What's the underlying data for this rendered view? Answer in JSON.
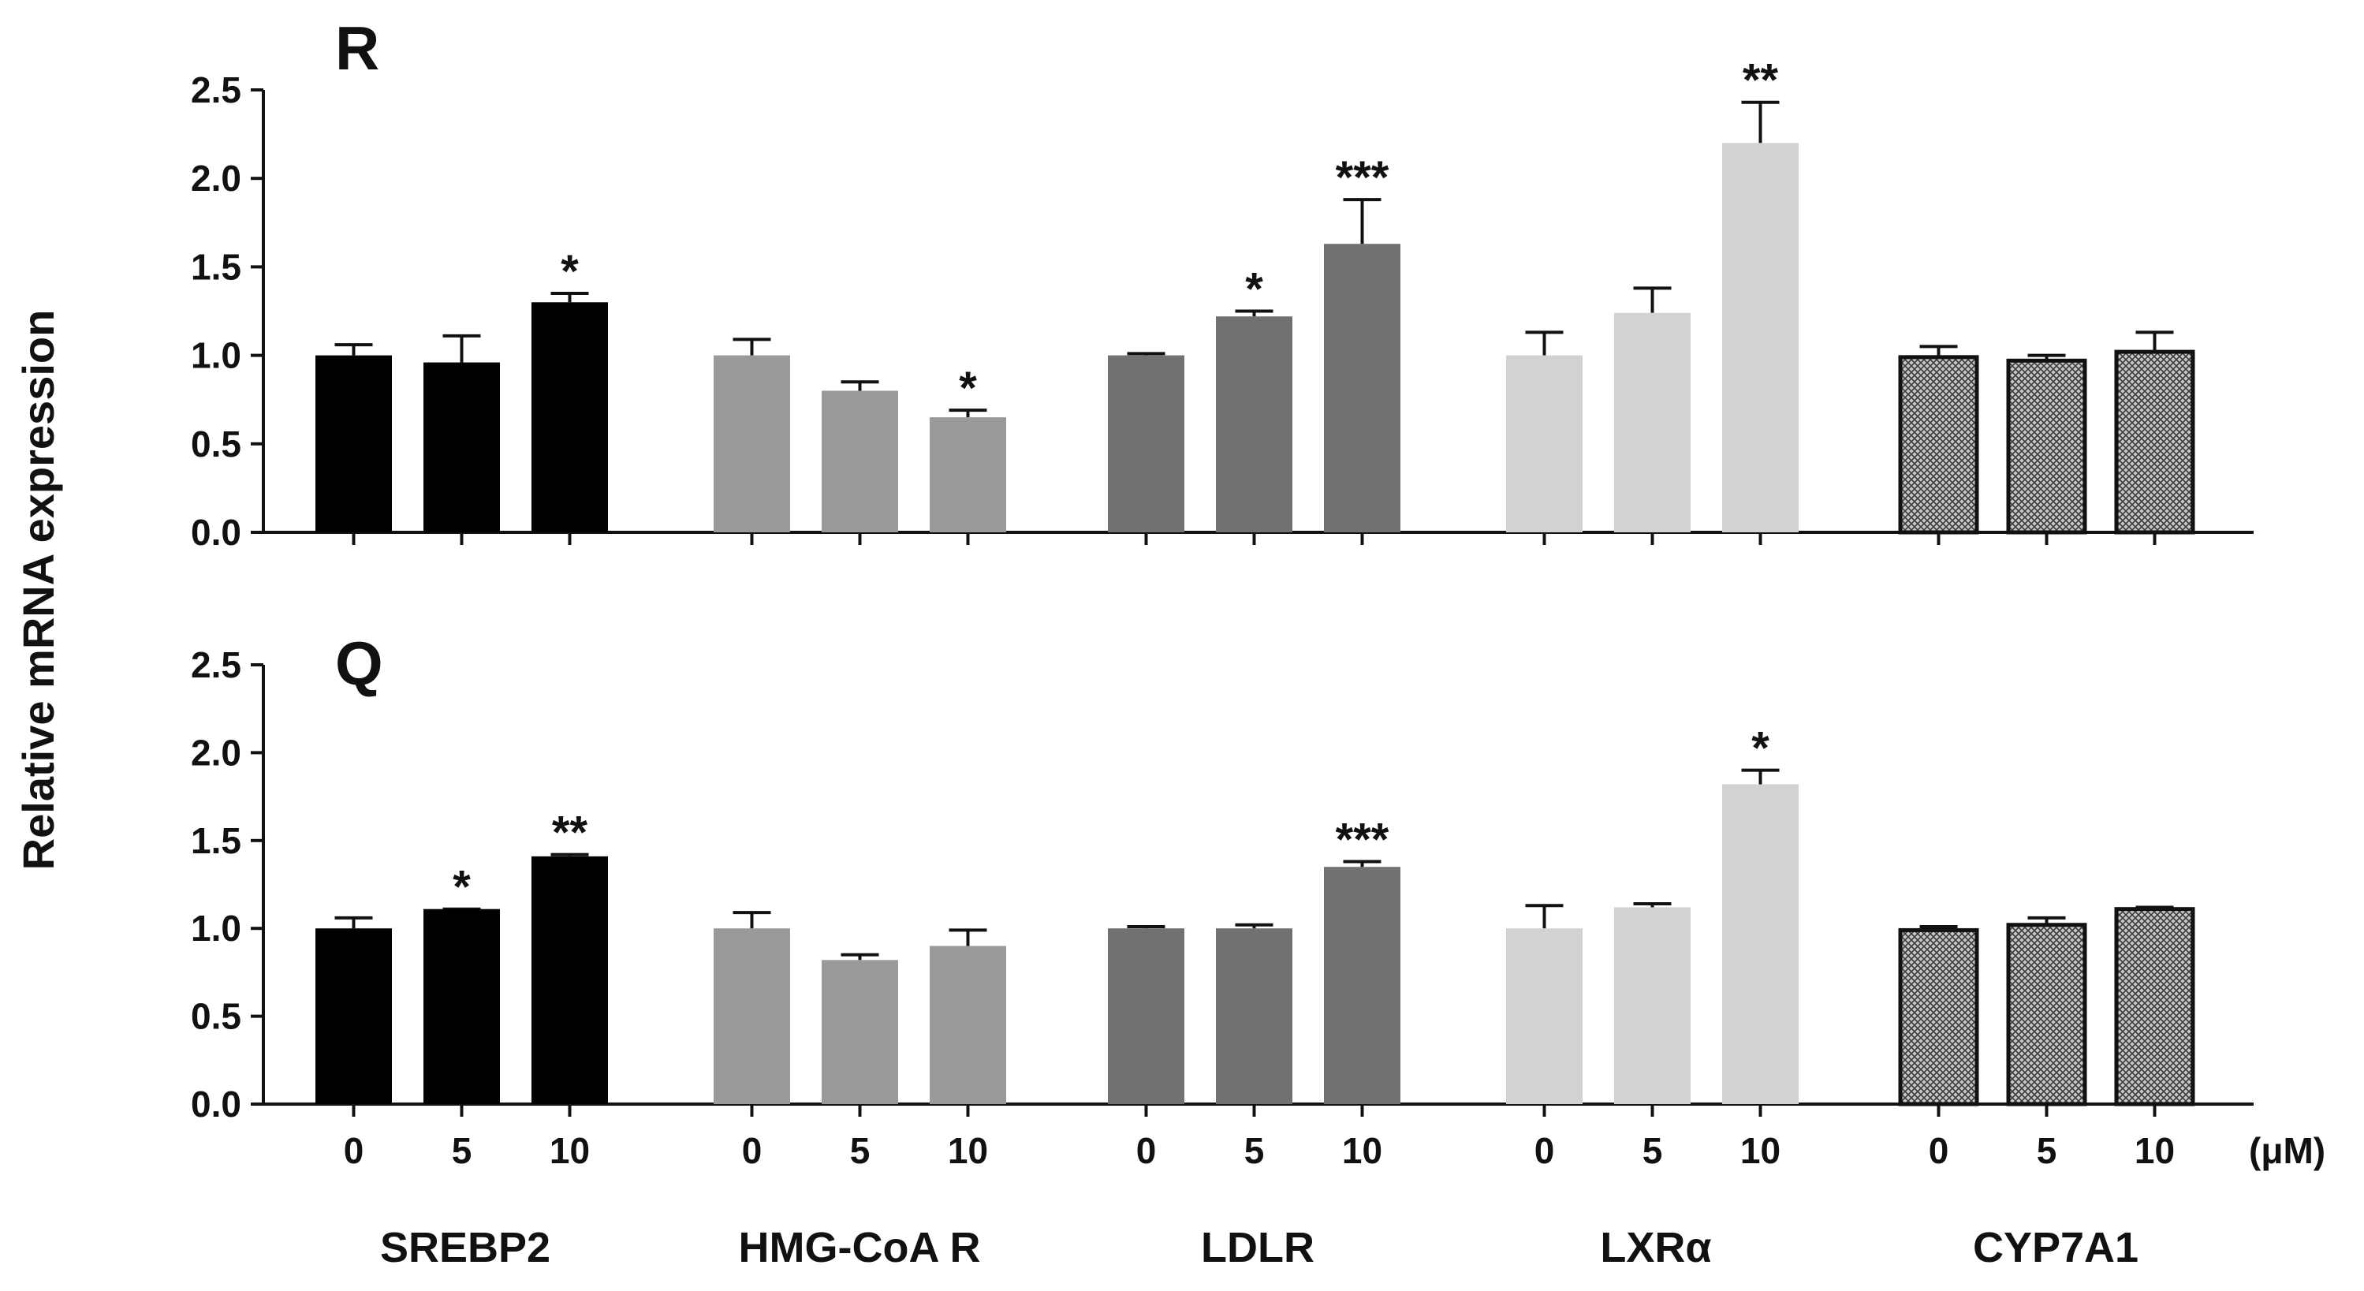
{
  "chart_data": {
    "type": "bar",
    "ylabel": "Relative mRNA expression",
    "unit_label": "(μM)",
    "categories": [
      "0",
      "5",
      "10"
    ],
    "genes": [
      {
        "name": "SREBP2",
        "color": "#000000",
        "pattern": "solid"
      },
      {
        "name": "HMG-CoA R",
        "color": "#9a9a9a",
        "pattern": "solid"
      },
      {
        "name": "LDLR",
        "color": "#717171",
        "pattern": "solid"
      },
      {
        "name": "LXRα",
        "color": "#d2d2d2",
        "pattern": "solid"
      },
      {
        "name": "CYP7A1",
        "color": "#8a8a8a",
        "pattern": "crosshatch"
      }
    ],
    "ylim": [
      0,
      2.5
    ],
    "yticks": [
      "0.0",
      "0.5",
      "1.0",
      "1.5",
      "2.0",
      "2.5"
    ],
    "panels": [
      {
        "title": "R",
        "series": [
          {
            "gene": "SREBP2",
            "values": [
              1.0,
              0.96,
              1.3
            ],
            "errors": [
              0.06,
              0.15,
              0.05
            ],
            "significance": [
              "",
              "",
              "*"
            ]
          },
          {
            "gene": "HMG-CoA R",
            "values": [
              1.0,
              0.8,
              0.65
            ],
            "errors": [
              0.09,
              0.05,
              0.04
            ],
            "significance": [
              "",
              "",
              "*"
            ]
          },
          {
            "gene": "LDLR",
            "values": [
              1.0,
              1.22,
              1.63
            ],
            "errors": [
              0.01,
              0.03,
              0.25
            ],
            "significance": [
              "",
              "*",
              "***"
            ]
          },
          {
            "gene": "LXRα",
            "values": [
              1.0,
              1.24,
              2.2
            ],
            "errors": [
              0.13,
              0.14,
              0.23
            ],
            "significance": [
              "",
              "",
              "**"
            ]
          },
          {
            "gene": "CYP7A1",
            "values": [
              0.99,
              0.97,
              1.02
            ],
            "errors": [
              0.06,
              0.03,
              0.11
            ],
            "significance": [
              "",
              "",
              ""
            ]
          }
        ]
      },
      {
        "title": "Q",
        "series": [
          {
            "gene": "SREBP2",
            "values": [
              1.0,
              1.11,
              1.41
            ],
            "errors": [
              0.06,
              0.0,
              0.01
            ],
            "significance": [
              "",
              "*",
              "**"
            ]
          },
          {
            "gene": "HMG-CoA R",
            "values": [
              1.0,
              0.82,
              0.9
            ],
            "errors": [
              0.09,
              0.03,
              0.09
            ],
            "significance": [
              "",
              "",
              ""
            ]
          },
          {
            "gene": "LDLR",
            "values": [
              1.0,
              1.0,
              1.35
            ],
            "errors": [
              0.01,
              0.02,
              0.03
            ],
            "significance": [
              "",
              "",
              "***"
            ]
          },
          {
            "gene": "LXRα",
            "values": [
              1.0,
              1.12,
              1.82
            ],
            "errors": [
              0.13,
              0.02,
              0.08
            ],
            "significance": [
              "",
              "",
              "*"
            ]
          },
          {
            "gene": "CYP7A1",
            "values": [
              0.99,
              1.02,
              1.11
            ],
            "errors": [
              0.02,
              0.04,
              0.01
            ],
            "significance": [
              "",
              "",
              ""
            ]
          }
        ]
      }
    ]
  }
}
